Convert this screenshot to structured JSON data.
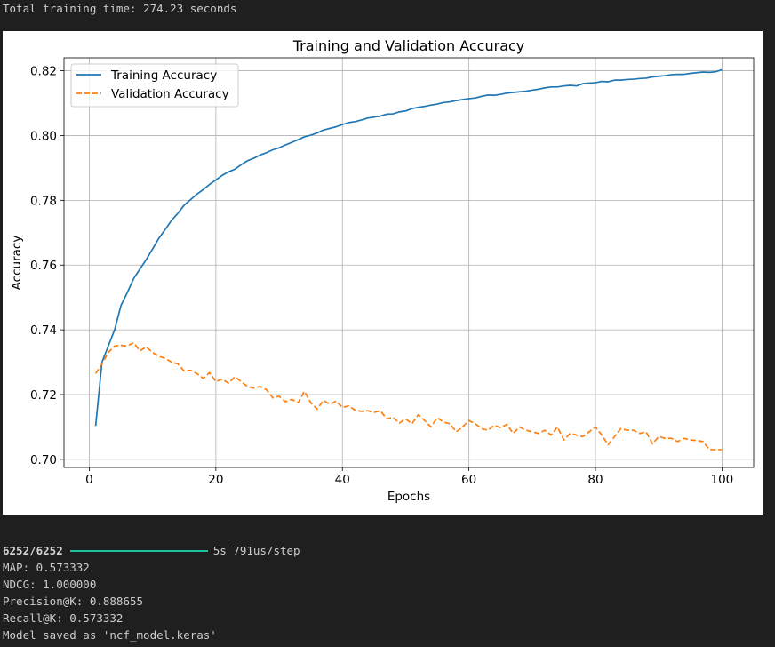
{
  "console_top": {
    "text": "Total training time: 274.23 seconds"
  },
  "console_bottom": {
    "progress": {
      "count": "6252/6252",
      "fraction": 1.0,
      "timing": "5s 791us/step"
    },
    "lines": [
      "MAP: 0.573332",
      "NDCG: 1.000000",
      "Precision@K: 0.888655",
      "Recall@K: 0.573332",
      "Model saved as 'ncf_model.keras'"
    ]
  },
  "chart_data": {
    "type": "line",
    "title": "Training and Validation Accuracy",
    "xlabel": "Epochs",
    "ylabel": "Accuracy",
    "xlim": [
      -4,
      105
    ],
    "ylim": [
      0.6975,
      0.824
    ],
    "xticks": [
      0,
      20,
      40,
      60,
      80,
      100
    ],
    "yticks": [
      0.7,
      0.72,
      0.74,
      0.76,
      0.78,
      0.8,
      0.82
    ],
    "xtick_labels": [
      "0",
      "20",
      "40",
      "60",
      "80",
      "100"
    ],
    "ytick_labels": [
      "0.70",
      "0.72",
      "0.74",
      "0.76",
      "0.78",
      "0.80",
      "0.82"
    ],
    "grid": true,
    "legend_position": "upper-left",
    "series": [
      {
        "name": "Training Accuracy",
        "color": "#1f77b4",
        "style": "solid",
        "x": [
          1,
          2,
          3,
          4,
          5,
          6,
          7,
          8,
          9,
          10,
          11,
          12,
          13,
          14,
          15,
          16,
          17,
          18,
          19,
          20,
          21,
          22,
          23,
          24,
          25,
          26,
          27,
          28,
          29,
          30,
          31,
          32,
          33,
          34,
          35,
          36,
          37,
          38,
          39,
          40,
          41,
          42,
          43,
          44,
          45,
          46,
          47,
          48,
          49,
          50,
          51,
          52,
          53,
          54,
          55,
          56,
          57,
          58,
          59,
          60,
          61,
          62,
          63,
          64,
          65,
          66,
          67,
          68,
          69,
          70,
          71,
          72,
          73,
          74,
          75,
          76,
          77,
          78,
          79,
          80,
          81,
          82,
          83,
          84,
          85,
          86,
          87,
          88,
          89,
          90,
          91,
          92,
          93,
          94,
          95,
          96,
          97,
          98,
          99,
          100
        ],
        "values": [
          0.7103,
          0.73,
          0.735,
          0.74,
          0.7475,
          0.7515,
          0.7558,
          0.7588,
          0.7617,
          0.765,
          0.7683,
          0.771,
          0.7738,
          0.776,
          0.7785,
          0.7802,
          0.7819,
          0.7833,
          0.7849,
          0.7863,
          0.7877,
          0.7888,
          0.7896,
          0.791,
          0.7922,
          0.793,
          0.794,
          0.7947,
          0.7956,
          0.7962,
          0.7971,
          0.7979,
          0.7987,
          0.7996,
          0.8001,
          0.8008,
          0.8017,
          0.8022,
          0.8027,
          0.8034,
          0.804,
          0.8043,
          0.8048,
          0.8054,
          0.8057,
          0.806,
          0.8066,
          0.8067,
          0.8073,
          0.8076,
          0.8083,
          0.8087,
          0.809,
          0.8094,
          0.8097,
          0.8102,
          0.8104,
          0.8108,
          0.8111,
          0.8114,
          0.8116,
          0.8121,
          0.8125,
          0.8124,
          0.8127,
          0.8131,
          0.8133,
          0.8135,
          0.8137,
          0.814,
          0.8143,
          0.8147,
          0.815,
          0.815,
          0.8153,
          0.8155,
          0.8153,
          0.816,
          0.8162,
          0.8163,
          0.8167,
          0.8166,
          0.8171,
          0.8171,
          0.8173,
          0.8174,
          0.8176,
          0.8177,
          0.8181,
          0.8183,
          0.8185,
          0.8188,
          0.8189,
          0.8189,
          0.8192,
          0.8194,
          0.8196,
          0.8195,
          0.8197,
          0.8203
        ]
      },
      {
        "name": "Validation Accuracy",
        "color": "#ff7f0e",
        "style": "dashed",
        "x": [
          1,
          2,
          3,
          4,
          5,
          6,
          7,
          8,
          9,
          10,
          11,
          12,
          13,
          14,
          15,
          16,
          17,
          18,
          19,
          20,
          21,
          22,
          23,
          24,
          25,
          26,
          27,
          28,
          29,
          30,
          31,
          32,
          33,
          34,
          35,
          36,
          37,
          38,
          39,
          40,
          41,
          42,
          43,
          44,
          45,
          46,
          47,
          48,
          49,
          50,
          51,
          52,
          53,
          54,
          55,
          56,
          57,
          58,
          59,
          60,
          61,
          62,
          63,
          64,
          65,
          66,
          67,
          68,
          69,
          70,
          71,
          72,
          73,
          74,
          75,
          76,
          77,
          78,
          79,
          80,
          81,
          82,
          83,
          84,
          85,
          86,
          87,
          88,
          89,
          90,
          91,
          92,
          93,
          94,
          95,
          96,
          97,
          98,
          99,
          100
        ],
        "values": [
          0.7265,
          0.7295,
          0.733,
          0.735,
          0.7352,
          0.735,
          0.736,
          0.7335,
          0.7347,
          0.733,
          0.7318,
          0.7312,
          0.73,
          0.7295,
          0.7272,
          0.7275,
          0.7265,
          0.725,
          0.7268,
          0.724,
          0.7248,
          0.7235,
          0.7255,
          0.724,
          0.7225,
          0.722,
          0.7225,
          0.7215,
          0.719,
          0.7195,
          0.7178,
          0.7185,
          0.7175,
          0.721,
          0.7175,
          0.7155,
          0.7182,
          0.717,
          0.718,
          0.716,
          0.7165,
          0.7152,
          0.7148,
          0.715,
          0.7145,
          0.715,
          0.7125,
          0.713,
          0.7112,
          0.7125,
          0.711,
          0.7138,
          0.712,
          0.71,
          0.7128,
          0.7115,
          0.711,
          0.7085,
          0.71,
          0.712,
          0.711,
          0.7095,
          0.709,
          0.7105,
          0.7098,
          0.7108,
          0.708,
          0.71,
          0.709,
          0.7085,
          0.708,
          0.709,
          0.7075,
          0.71,
          0.706,
          0.708,
          0.7075,
          0.707,
          0.7085,
          0.71,
          0.7075,
          0.7045,
          0.707,
          0.7095,
          0.709,
          0.709,
          0.708,
          0.7085,
          0.7048,
          0.707,
          0.7065,
          0.7065,
          0.7055,
          0.7065,
          0.706,
          0.7058,
          0.7055,
          0.703,
          0.703,
          0.703
        ]
      }
    ]
  }
}
